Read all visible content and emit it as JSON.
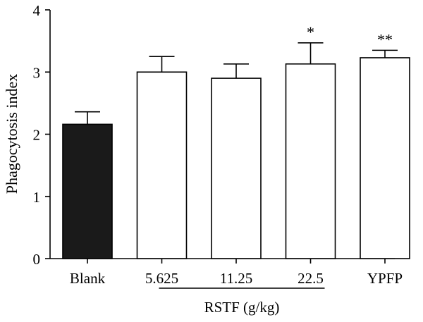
{
  "chart_data": {
    "type": "bar",
    "title": "",
    "ylabel": "Phagocytosis index",
    "xlabel": "",
    "ylim": [
      0,
      4
    ],
    "y_ticks": [
      0,
      1,
      2,
      3,
      4
    ],
    "categories": [
      "Blank",
      "5.625",
      "11.25",
      "22.5",
      "YPFP"
    ],
    "values": [
      2.16,
      3.0,
      2.9,
      3.13,
      3.23
    ],
    "error_upper": [
      0.2,
      0.25,
      0.23,
      0.34,
      0.12
    ],
    "fills": [
      "#1a1a1a",
      "#ffffff",
      "#ffffff",
      "#ffffff",
      "#ffffff"
    ],
    "significance": [
      "",
      "",
      "",
      "*",
      "**"
    ],
    "group_bracket": {
      "label": "RSTF (g/kg)",
      "start_index": 1,
      "end_index": 3
    }
  }
}
